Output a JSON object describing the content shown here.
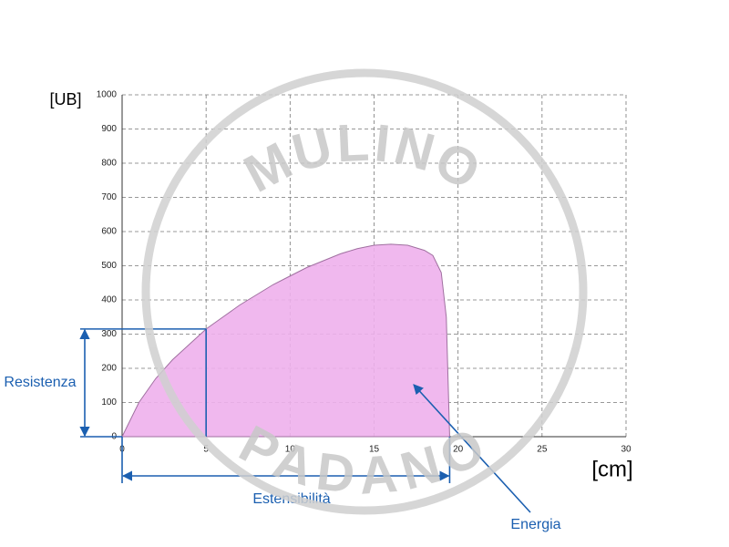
{
  "chart_data": {
    "type": "area",
    "y_label": "[UB]",
    "x_label": "[cm]",
    "x": [
      0,
      1,
      2,
      3,
      4,
      5,
      6,
      7,
      8,
      9,
      10,
      11,
      12,
      13,
      14,
      15,
      16,
      17,
      18,
      18.5,
      19,
      19.3,
      19.5
    ],
    "values": [
      0,
      100,
      170,
      225,
      270,
      315,
      350,
      385,
      415,
      445,
      470,
      495,
      515,
      535,
      550,
      560,
      563,
      560,
      545,
      530,
      480,
      350,
      0
    ],
    "color": "#eeb0ec",
    "xlim": [
      0,
      30
    ],
    "xticks": [
      0,
      5,
      10,
      15,
      20,
      25,
      30
    ],
    "ylim": [
      0,
      1000
    ],
    "yticks": [
      0,
      100,
      200,
      300,
      400,
      500,
      600,
      700,
      800,
      900,
      1000
    ],
    "grid": true,
    "annotations": [
      {
        "label": "Resistenza",
        "x": 5,
        "value": 315
      },
      {
        "label": "Estensibilità",
        "value": 19.5
      },
      {
        "label": "Energia"
      }
    ],
    "watermark": [
      "MULINO",
      "PADANO"
    ]
  }
}
